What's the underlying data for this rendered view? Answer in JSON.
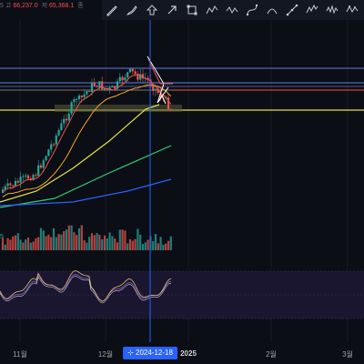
{
  "legend": {
    "num_prefix": "5",
    "high_label": "고",
    "high_value": "66,237.0",
    "low_label": "저",
    "low_value": "65,368.1",
    "close_label": "종"
  },
  "volume_label": "5",
  "toolbar": {
    "tools": [
      "pen-tool",
      "brush-tool",
      "arrow-up-tool",
      "arrow-tool",
      "rectangle-tool",
      "path-tool",
      "polyline-tool",
      "curve-tool",
      "arc-tool",
      "trend-tool",
      "elliott-tool",
      "wave-tool",
      "abcd-tool"
    ]
  },
  "xaxis": {
    "ticks": [
      "11월",
      "12월",
      "2025",
      "2월",
      "3월"
    ],
    "crosshair": "2024-12-18",
    "crosshair_icon": "calendar-icon"
  },
  "colors": {
    "background": "#0c0e15",
    "up": "#26a69a",
    "down": "#ef5350",
    "ma_fast": "#ef5350",
    "ma_mid": "#f5a623",
    "ma_slow": "#e6e04a",
    "ma_long": "#2ecc71",
    "ma_xlong": "#2962ff",
    "horizontal_line_blue": "#5b7fe8",
    "horizontal_line_yellow": "#e6e04a",
    "crosshair": "#2962ff",
    "oscillator": "#7e57c2"
  }
}
